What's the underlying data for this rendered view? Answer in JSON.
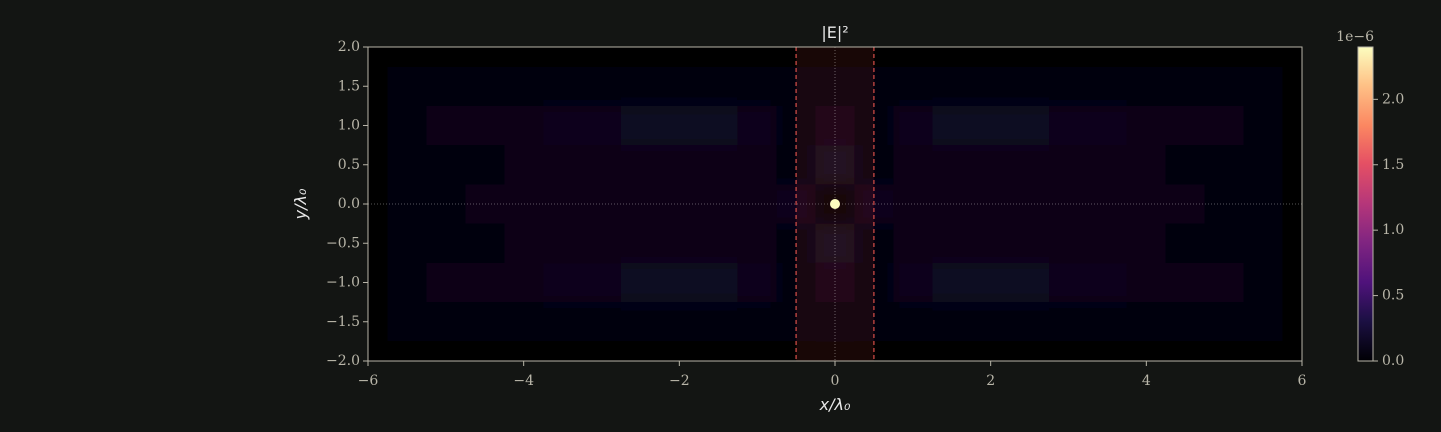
{
  "chart_data": {
    "type": "heatmap",
    "title": "|E|²",
    "x_label": "x/λ₀",
    "y_label": "y/λ₀",
    "colormap": "magma",
    "clim": [
      0,
      2.4
    ],
    "colorbar_offset_label": "1e−6",
    "colorbar_ticks": [
      {
        "value": 0,
        "label": "0.0"
      },
      {
        "value": 0.5,
        "label": "0.5"
      },
      {
        "value": 1,
        "label": "1.0"
      },
      {
        "value": 1.5,
        "label": "1.5"
      },
      {
        "value": 2,
        "label": "2.0"
      }
    ],
    "xlim": [
      -6,
      6
    ],
    "ylim": [
      -2,
      2
    ],
    "xticks": [
      {
        "value": -6,
        "label": "−6"
      },
      {
        "value": -4,
        "label": "−4"
      },
      {
        "value": -2,
        "label": "−2"
      },
      0,
      2,
      4,
      6
    ],
    "yticks": [
      {
        "value": -2,
        "label": "−2.0"
      },
      {
        "value": -1.5,
        "label": "−1.5"
      },
      {
        "value": -1,
        "label": "−1.0"
      },
      {
        "value": -0.5,
        "label": "−0.5"
      },
      {
        "value": 0,
        "label": "0.0"
      },
      {
        "value": 0.5,
        "label": "0.5"
      },
      {
        "value": 1,
        "label": "1.0"
      },
      {
        "value": 1.5,
        "label": "1.5"
      },
      {
        "value": 2,
        "label": "2.0"
      }
    ],
    "region": [
      -0.5,
      0.5
    ],
    "x": [
      -6,
      -5.5,
      -5,
      -4.5,
      -4,
      -3.5,
      -3,
      -2.5,
      -2,
      -1.5,
      -1,
      -0.5,
      0,
      0.5,
      1,
      1.5,
      2,
      2.5,
      3,
      3.5,
      4,
      4.5,
      5,
      5.5,
      6
    ],
    "y": [
      -2,
      -1.5,
      -1,
      -0.5,
      0,
      0.5,
      1,
      1.5,
      2
    ],
    "z": [
      [
        0.01,
        0.01,
        0.01,
        0.01,
        0.01,
        0.01,
        0.01,
        0.01,
        0.01,
        0.01,
        0.01,
        0.01,
        0.01,
        0.01,
        0.01,
        0.01,
        0.01,
        0.01,
        0.01,
        0.01,
        0.01,
        0.01,
        0.01,
        0.01,
        0.01
      ],
      [
        0.01,
        0.02,
        0.02,
        0.02,
        0.02,
        0.02,
        0.02,
        0.02,
        0.02,
        0.02,
        0.02,
        0.02,
        0.03,
        0.02,
        0.02,
        0.02,
        0.02,
        0.02,
        0.02,
        0.02,
        0.02,
        0.02,
        0.02,
        0.02,
        0.01
      ],
      [
        0.01,
        0.04,
        0.07,
        0.09,
        0.1,
        0.11,
        0.12,
        0.14,
        0.15,
        0.14,
        0.12,
        0.06,
        0.1,
        0.06,
        0.12,
        0.14,
        0.15,
        0.14,
        0.12,
        0.11,
        0.1,
        0.09,
        0.07,
        0.04,
        0.01
      ],
      [
        0.01,
        0.03,
        0.05,
        0.06,
        0.07,
        0.08,
        0.08,
        0.09,
        0.09,
        0.08,
        0.07,
        0.05,
        0.15,
        0.05,
        0.07,
        0.08,
        0.09,
        0.09,
        0.08,
        0.08,
        0.07,
        0.06,
        0.05,
        0.03,
        0.01
      ],
      [
        0.01,
        0.04,
        0.06,
        0.07,
        0.07,
        0.08,
        0.08,
        0.08,
        0.09,
        0.09,
        0.1,
        0.12,
        2.4,
        0.12,
        0.1,
        0.09,
        0.09,
        0.08,
        0.08,
        0.08,
        0.07,
        0.07,
        0.06,
        0.04,
        0.01
      ],
      [
        0.01,
        0.03,
        0.05,
        0.06,
        0.07,
        0.08,
        0.08,
        0.09,
        0.09,
        0.08,
        0.07,
        0.05,
        0.15,
        0.05,
        0.07,
        0.08,
        0.09,
        0.09,
        0.08,
        0.08,
        0.07,
        0.06,
        0.05,
        0.03,
        0.01
      ],
      [
        0.01,
        0.04,
        0.07,
        0.09,
        0.1,
        0.11,
        0.12,
        0.14,
        0.15,
        0.14,
        0.12,
        0.06,
        0.1,
        0.06,
        0.12,
        0.14,
        0.15,
        0.14,
        0.12,
        0.11,
        0.1,
        0.09,
        0.07,
        0.04,
        0.01
      ],
      [
        0.01,
        0.02,
        0.02,
        0.02,
        0.02,
        0.02,
        0.02,
        0.02,
        0.02,
        0.02,
        0.02,
        0.02,
        0.03,
        0.02,
        0.02,
        0.02,
        0.02,
        0.02,
        0.02,
        0.02,
        0.02,
        0.02,
        0.02,
        0.02,
        0.01
      ],
      [
        0.01,
        0.01,
        0.01,
        0.01,
        0.01,
        0.01,
        0.01,
        0.01,
        0.01,
        0.01,
        0.01,
        0.01,
        0.01,
        0.01,
        0.01,
        0.01,
        0.01,
        0.01,
        0.01,
        0.01,
        0.01,
        0.01,
        0.01,
        0.01,
        0.01
      ]
    ]
  }
}
